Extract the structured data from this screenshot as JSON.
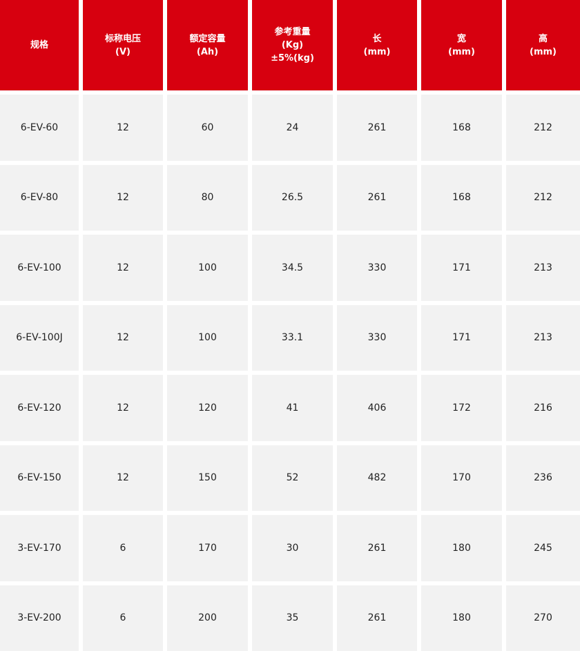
{
  "colors": {
    "header_bg": "#d7000f",
    "cell_bg": "#f2f2f2"
  },
  "headers": [
    "规格",
    "标称电压\n(V)",
    "额定容量\n(Ah)",
    "参考重量\n(Kg)\n±5%(kg)",
    "长\n(mm)",
    "宽\n(mm)",
    "高\n(mm)"
  ],
  "rows": [
    [
      "6-EV-60",
      "12",
      "60",
      "24",
      "261",
      "168",
      "212"
    ],
    [
      "6-EV-80",
      "12",
      "80",
      "26.5",
      "261",
      "168",
      "212"
    ],
    [
      "6-EV-100",
      "12",
      "100",
      "34.5",
      "330",
      "171",
      "213"
    ],
    [
      "6-EV-100J",
      "12",
      "100",
      "33.1",
      "330",
      "171",
      "213"
    ],
    [
      "6-EV-120",
      "12",
      "120",
      "41",
      "406",
      "172",
      "216"
    ],
    [
      "6-EV-150",
      "12",
      "150",
      "52",
      "482",
      "170",
      "236"
    ],
    [
      "3-EV-170",
      "6",
      "170",
      "30",
      "261",
      "180",
      "245"
    ],
    [
      "3-EV-200",
      "6",
      "200",
      "35",
      "261",
      "180",
      "270"
    ]
  ]
}
